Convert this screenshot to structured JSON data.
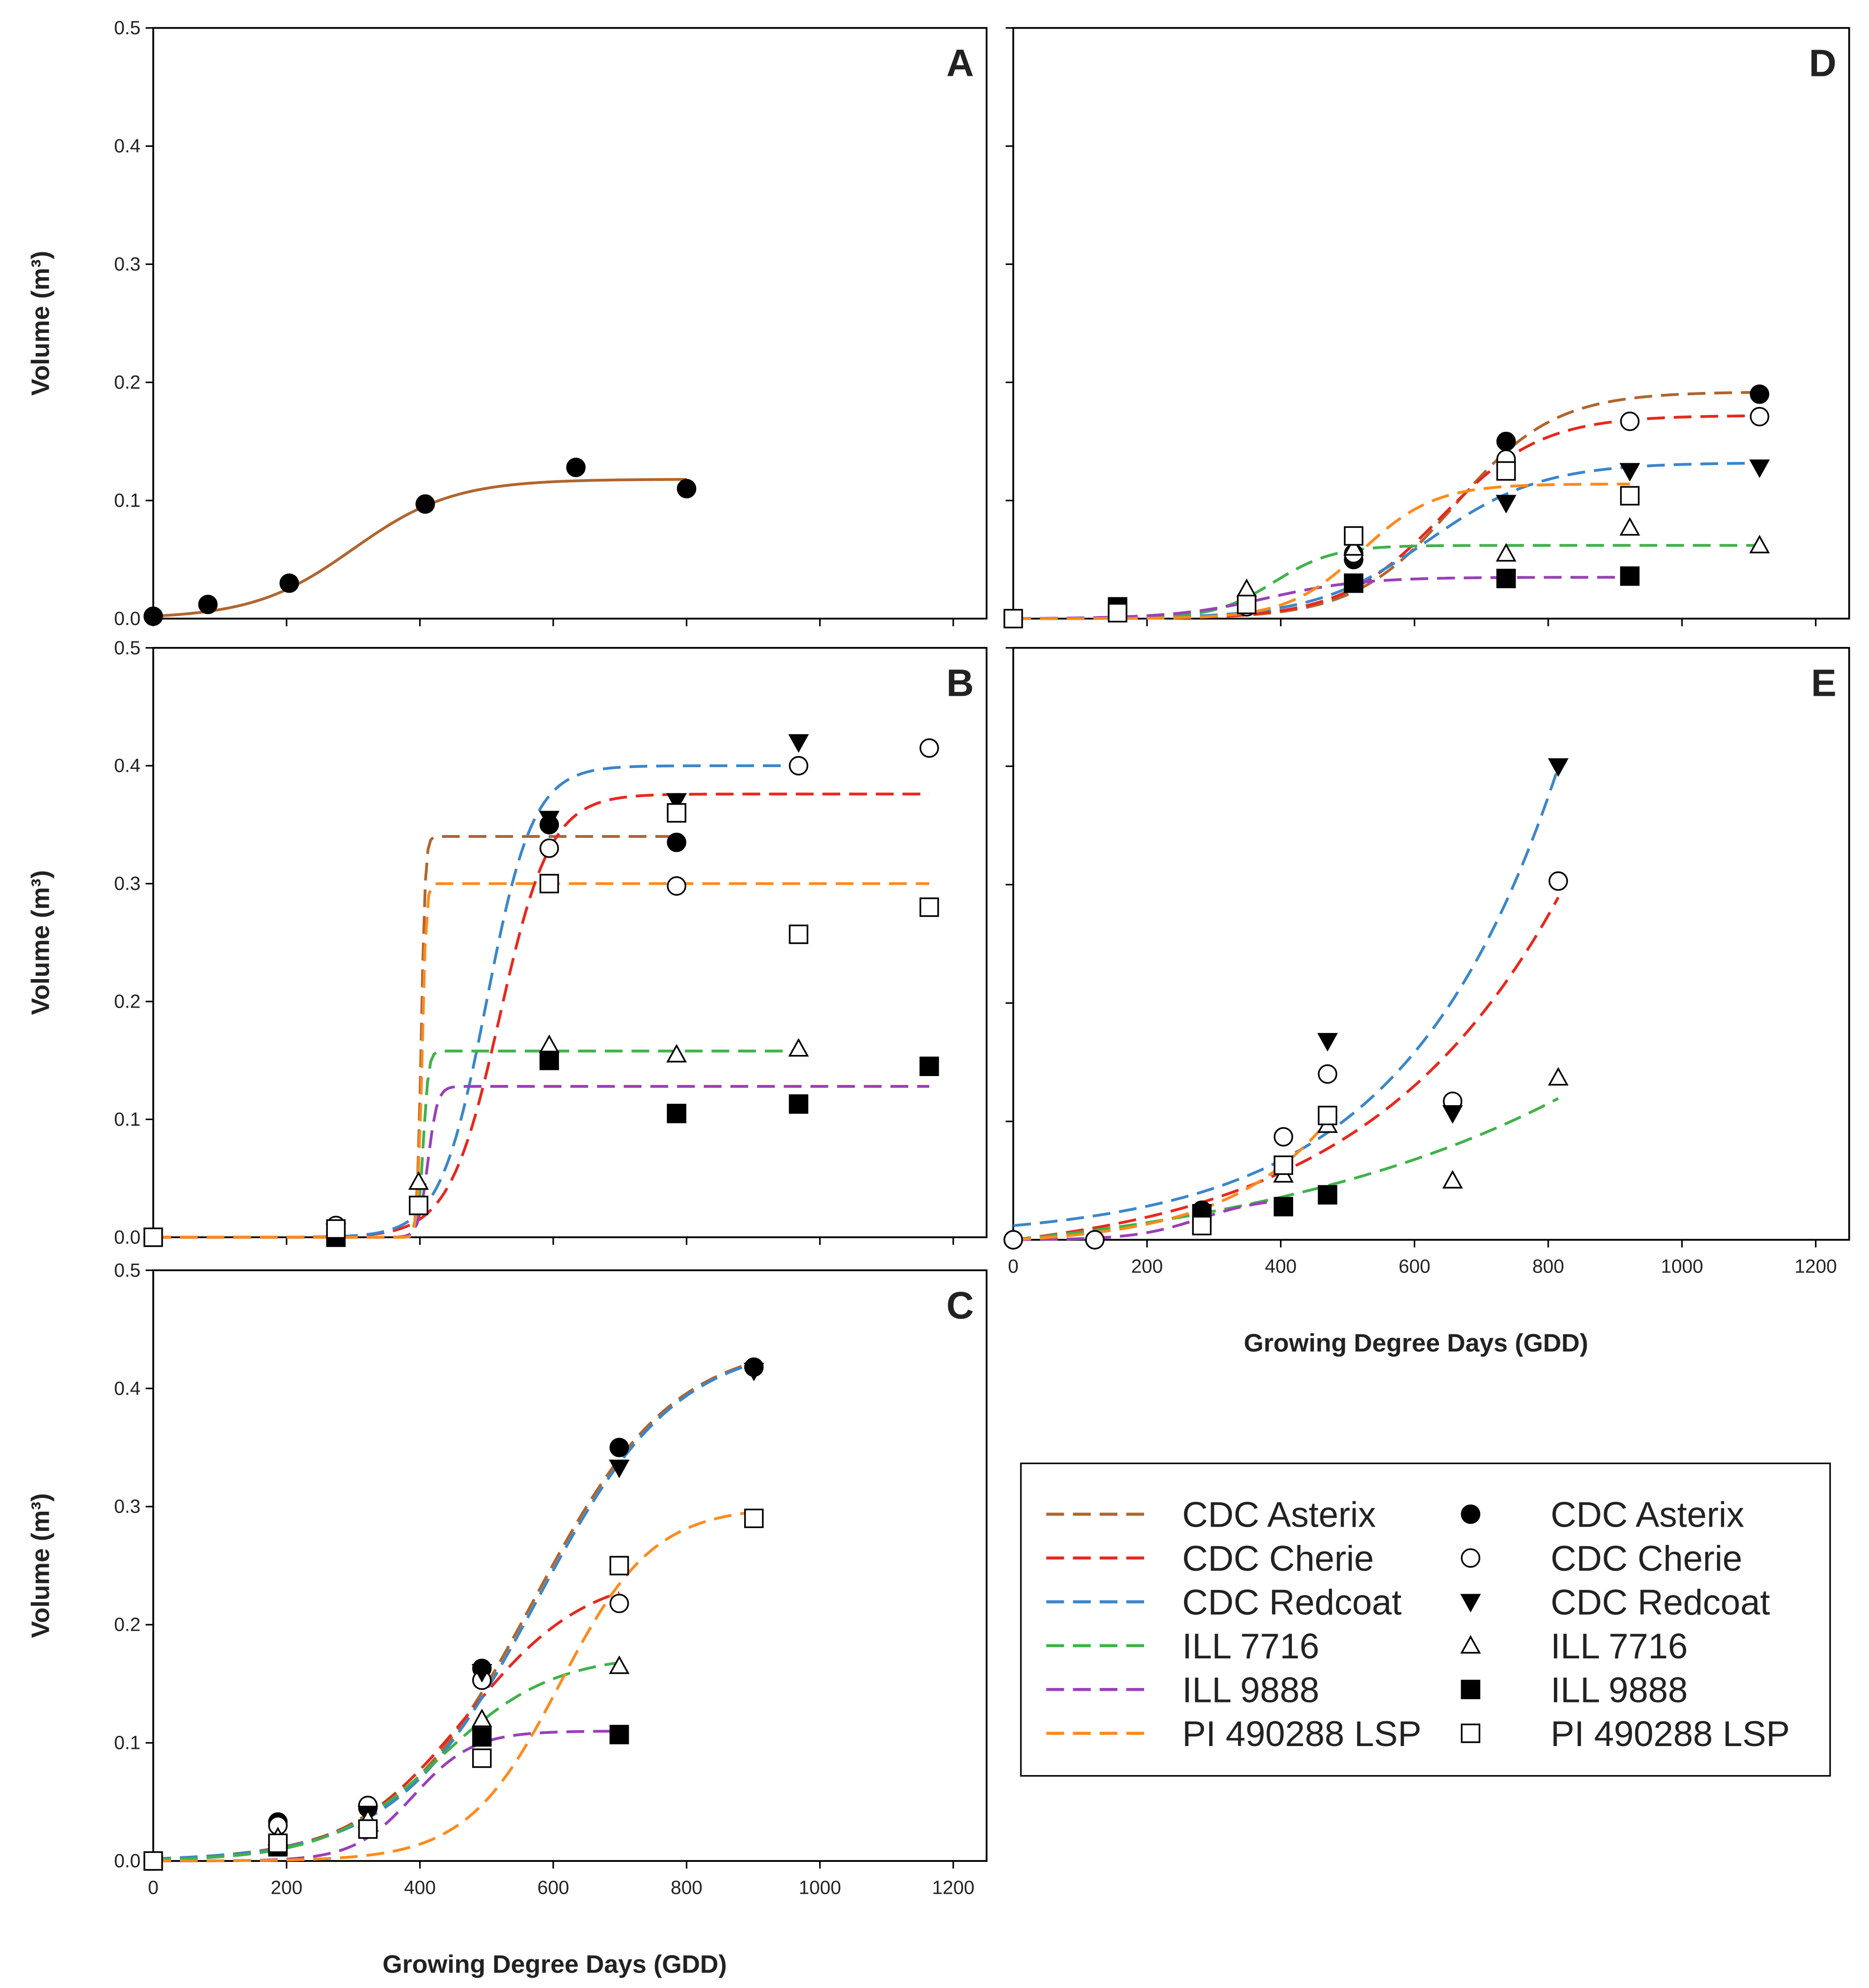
{
  "chart_data": {
    "type": "scatter",
    "xlabel": "Growing Degree Days (GDD)",
    "ylabel": "Volume (m³)",
    "xlim": [
      0,
      1250
    ],
    "ylim": [
      0,
      0.5
    ],
    "xticks": [
      "0",
      "200",
      "400",
      "600",
      "800",
      "1000",
      "1200"
    ],
    "yticks": [
      "0.0",
      "0.1",
      "0.2",
      "0.3",
      "0.4",
      "0.5"
    ],
    "series_styles": {
      "CDC Asterix": {
        "color": "#b0652f",
        "marker": "filled-circle"
      },
      "CDC Cherie": {
        "color": "#e8281e",
        "marker": "open-circle"
      },
      "CDC Redcoat": {
        "color": "#3b86c9",
        "marker": "filled-triangle-down"
      },
      "ILL 7716": {
        "color": "#3fb24a",
        "marker": "open-triangle-up"
      },
      "ILL 9888": {
        "color": "#9a40b8",
        "marker": "filled-square"
      },
      "PI 490288 LSP": {
        "color": "#ff8a1c",
        "marker": "open-square"
      }
    },
    "legend": {
      "placement": "bottom-right",
      "entries": [
        "CDC Asterix",
        "CDC Cherie",
        "CDC Redcoat",
        "ILL 7716",
        "ILL 9888",
        "PI 490288 LSP"
      ]
    },
    "panels": [
      {
        "label": "A",
        "series": [
          {
            "name": "CDC Asterix",
            "points": [
              [
                0,
                0.002
              ],
              [
                82,
                0.012
              ],
              [
                204,
                0.03
              ],
              [
                408,
                0.097
              ],
              [
                634,
                0.128
              ],
              [
                800,
                0.11
              ]
            ],
            "curve": {
              "model": "logistic",
              "K": 0.118,
              "x0": 300,
              "w": 75,
              "range": [
                0,
                800
              ],
              "solid": true
            }
          }
        ]
      },
      {
        "label": "B",
        "series": [
          {
            "name": "CDC Asterix",
            "points": [
              [
                0,
                0
              ],
              [
                274,
                0.0
              ],
              [
                594,
                0.35
              ],
              [
                785,
                0.335
              ]
            ],
            "curve": {
              "model": "logistic",
              "K": 0.34,
              "x0": 402,
              "w": 3,
              "range": [
                0,
                785
              ]
            }
          },
          {
            "name": "CDC Cherie",
            "points": [
              [
                0,
                0
              ],
              [
                274,
                0.01
              ],
              [
                594,
                0.33
              ],
              [
                785,
                0.298
              ],
              [
                968,
                0.4
              ],
              [
                1164,
                0.415
              ]
            ],
            "curve": {
              "model": "logistic",
              "K": 0.376,
              "x0": 520,
              "w": 38,
              "range": [
                0,
                1164
              ]
            }
          },
          {
            "name": "CDC Redcoat",
            "points": [
              [
                274,
                0.005
              ],
              [
                594,
                0.355
              ],
              [
                785,
                0.37
              ],
              [
                968,
                0.42
              ]
            ],
            "curve": {
              "model": "logistic",
              "K": 0.4,
              "x0": 500,
              "w": 35,
              "range": [
                0,
                968
              ]
            }
          },
          {
            "name": "ILL 7716",
            "points": [
              [
                398,
                0.047
              ],
              [
                594,
                0.163
              ],
              [
                785,
                0.155
              ],
              [
                968,
                0.16
              ]
            ],
            "curve": {
              "model": "logistic",
              "K": 0.158,
              "x0": 405,
              "w": 4,
              "range": [
                0,
                968
              ]
            }
          },
          {
            "name": "ILL 9888",
            "points": [
              [
                274,
                0.0
              ],
              [
                594,
                0.15
              ],
              [
                785,
                0.105
              ],
              [
                968,
                0.113
              ],
              [
                1164,
                0.145
              ]
            ],
            "curve": {
              "model": "logistic",
              "K": 0.128,
              "x0": 412,
              "w": 7,
              "range": [
                0,
                1164
              ]
            }
          },
          {
            "name": "PI 490288 LSP",
            "points": [
              [
                0,
                0
              ],
              [
                274,
                0.007
              ],
              [
                398,
                0.027
              ],
              [
                594,
                0.3
              ],
              [
                785,
                0.36
              ],
              [
                968,
                0.257
              ],
              [
                1164,
                0.28
              ]
            ],
            "curve": {
              "model": "logistic",
              "K": 0.3,
              "x0": 403,
              "w": 3,
              "range": [
                0,
                1164
              ]
            }
          }
        ]
      },
      {
        "label": "C",
        "series": [
          {
            "name": "CDC Asterix",
            "points": [
              [
                0,
                0
              ],
              [
                187,
                0.033
              ],
              [
                322,
                0.045
              ],
              [
                493,
                0.163
              ],
              [
                699,
                0.35
              ],
              [
                901,
                0.418
              ]
            ],
            "curve": {
              "model": "logistic",
              "K": 0.44,
              "x0": 570,
              "w": 105,
              "range": [
                0,
                901
              ]
            }
          },
          {
            "name": "CDC Cherie",
            "points": [
              [
                187,
                0.03
              ],
              [
                322,
                0.047
              ],
              [
                493,
                0.153
              ],
              [
                699,
                0.218
              ]
            ],
            "curve": {
              "model": "logistic",
              "K": 0.245,
              "x0": 470,
              "w": 90,
              "range": [
                0,
                699
              ]
            }
          },
          {
            "name": "CDC Redcoat",
            "points": [
              [
                322,
                0.04
              ],
              [
                493,
                0.16
              ],
              [
                699,
                0.333
              ],
              [
                901,
                0.415
              ]
            ],
            "curve": {
              "model": "logistic",
              "K": 0.44,
              "x0": 575,
              "w": 105,
              "range": [
                0,
                901
              ]
            }
          },
          {
            "name": "ILL 7716",
            "points": [
              [
                187,
                0.02
              ],
              [
                322,
                0.035
              ],
              [
                493,
                0.12
              ],
              [
                699,
                0.165
              ]
            ],
            "curve": {
              "model": "logistic",
              "K": 0.175,
              "x0": 430,
              "w": 85,
              "range": [
                0,
                699
              ]
            }
          },
          {
            "name": "ILL 9888",
            "points": [
              [
                187,
                0.012
              ],
              [
                493,
                0.105
              ],
              [
                699,
                0.107
              ]
            ],
            "curve": {
              "model": "logistic",
              "K": 0.11,
              "x0": 390,
              "w": 45,
              "range": [
                0,
                699
              ]
            }
          },
          {
            "name": "PI 490288 LSP",
            "points": [
              [
                0,
                0
              ],
              [
                187,
                0.015
              ],
              [
                322,
                0.027
              ],
              [
                493,
                0.087
              ],
              [
                699,
                0.25
              ],
              [
                901,
                0.29
              ]
            ],
            "curve": {
              "model": "logistic",
              "K": 0.3,
              "x0": 610,
              "w": 70,
              "range": [
                0,
                901
              ]
            }
          }
        ]
      },
      {
        "label": "D",
        "series": [
          {
            "name": "CDC Asterix",
            "points": [
              [
                0,
                0
              ],
              [
                156,
                0.008
              ],
              [
                349,
                0.015
              ],
              [
                509,
                0.05
              ],
              [
                737,
                0.15
              ],
              [
                1116,
                0.19
              ]
            ],
            "curve": {
              "model": "logistic",
              "K": 0.192,
              "x0": 660,
              "w": 75,
              "range": [
                0,
                1116
              ]
            }
          },
          {
            "name": "CDC Cherie",
            "points": [
              [
                349,
                0.01
              ],
              [
                509,
                0.055
              ],
              [
                737,
                0.135
              ],
              [
                922,
                0.167
              ],
              [
                1116,
                0.171
              ]
            ],
            "curve": {
              "model": "logistic",
              "K": 0.172,
              "x0": 640,
              "w": 75,
              "range": [
                0,
                1116
              ]
            }
          },
          {
            "name": "CDC Redcoat",
            "points": [
              [
                737,
                0.098
              ],
              [
                922,
                0.125
              ],
              [
                1116,
                0.128
              ]
            ],
            "curve": {
              "model": "logistic",
              "K": 0.132,
              "x0": 620,
              "w": 85,
              "range": [
                0,
                1116
              ]
            }
          },
          {
            "name": "ILL 7716",
            "points": [
              [
                349,
                0.025
              ],
              [
                509,
                0.06
              ],
              [
                737,
                0.055
              ],
              [
                922,
                0.077
              ],
              [
                1116,
                0.062
              ]
            ],
            "curve": {
              "model": "logistic",
              "K": 0.062,
              "x0": 390,
              "w": 45,
              "range": [
                0,
                1116
              ]
            }
          },
          {
            "name": "ILL 9888",
            "points": [
              [
                156,
                0.01
              ],
              [
                509,
                0.03
              ],
              [
                737,
                0.034
              ],
              [
                922,
                0.036
              ]
            ],
            "curve": {
              "model": "logistic",
              "K": 0.035,
              "x0": 380,
              "w": 70,
              "range": [
                0,
                922
              ]
            }
          },
          {
            "name": "PI 490288 LSP",
            "points": [
              [
                0,
                0
              ],
              [
                156,
                0.005
              ],
              [
                349,
                0.012
              ],
              [
                509,
                0.07
              ],
              [
                737,
                0.125
              ],
              [
                922,
                0.104
              ]
            ],
            "curve": {
              "model": "logistic",
              "K": 0.114,
              "x0": 520,
              "w": 55,
              "range": [
                0,
                922
              ]
            }
          }
        ]
      },
      {
        "label": "E",
        "series": [
          {
            "name": "CDC Asterix",
            "points": [
              [
                0,
                0
              ],
              [
                282,
                0.025
              ]
            ],
            "curve": null
          },
          {
            "name": "CDC Cherie",
            "points": [
              [
                0,
                0
              ],
              [
                122,
                0
              ],
              [
                404,
                0.087
              ],
              [
                470,
                0.14
              ],
              [
                657,
                0.117
              ],
              [
                815,
                0.303
              ]
            ],
            "curve": {
              "model": "exp",
              "a": 0.02,
              "b": 0.00336,
              "c": -0.02,
              "range": [
                0,
                815
              ]
            }
          },
          {
            "name": "CDC Redcoat",
            "points": [
              [
                470,
                0.168
              ],
              [
                657,
                0.107
              ],
              [
                815,
                0.4
              ]
            ],
            "curve": {
              "model": "exp",
              "a": 0.012,
              "b": 0.0043,
              "c": 0,
              "range": [
                0,
                815
              ]
            }
          },
          {
            "name": "ILL 7716",
            "points": [
              [
                404,
                0.055
              ],
              [
                470,
                0.097
              ],
              [
                657,
                0.05
              ],
              [
                815,
                0.137
              ]
            ],
            "curve": {
              "model": "exp",
              "a": 0.03,
              "b": 0.00197,
              "c": -0.03,
              "range": [
                0,
                815
              ]
            }
          },
          {
            "name": "ILL 9888",
            "points": [
              [
                282,
                0.022
              ],
              [
                404,
                0.028
              ],
              [
                470,
                0.038
              ]
            ],
            "curve": {
              "model": "logistic",
              "K": 0.036,
              "x0": 280,
              "w": 50,
              "range": [
                0,
                404
              ]
            }
          },
          {
            "name": "PI 490288 LSP",
            "points": [
              [
                282,
                0.012
              ],
              [
                404,
                0.063
              ],
              [
                470,
                0.105
              ]
            ],
            "curve": {
              "model": "exp",
              "a": 0.005,
              "b": 0.00648,
              "c": -0.005,
              "range": [
                0,
                470
              ]
            }
          }
        ]
      }
    ]
  }
}
